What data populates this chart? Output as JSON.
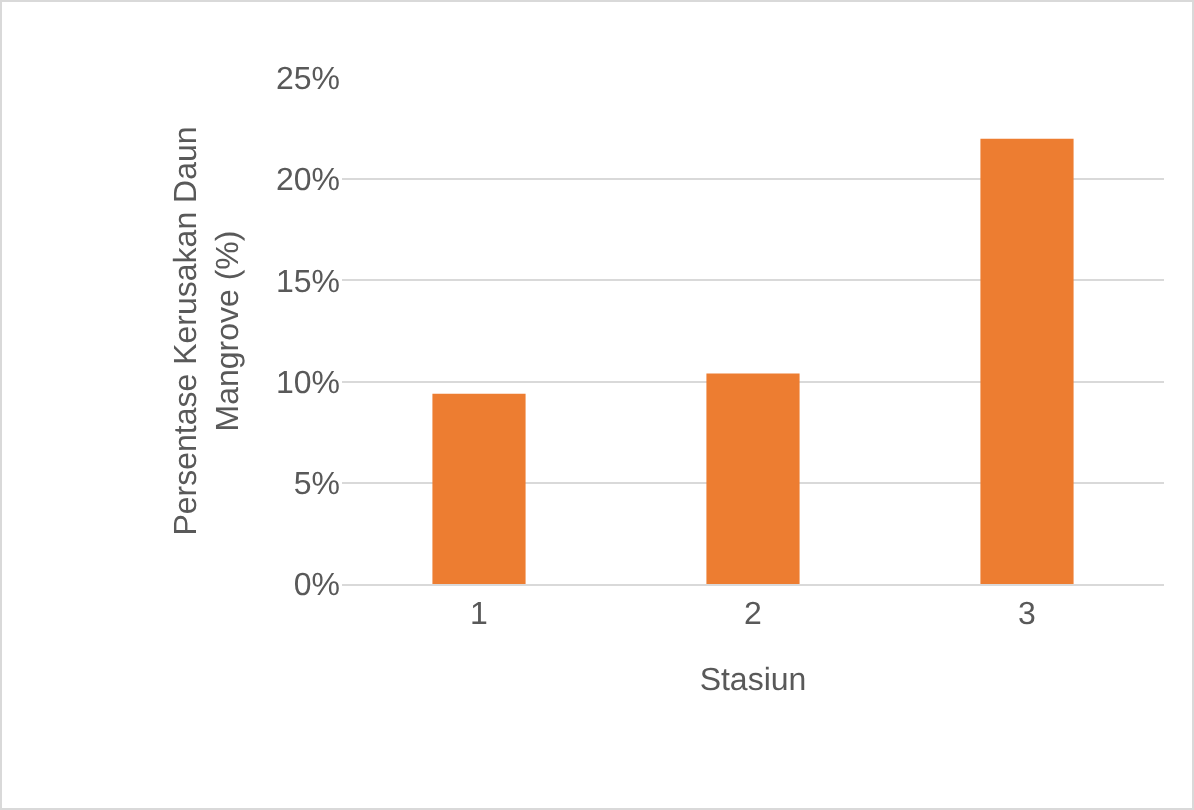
{
  "chart_data": {
    "type": "bar",
    "xlabel": "Stasiun",
    "ylabel": "Persentase Kerusakan Daun Mangrove (%)",
    "categories": [
      "1",
      "2",
      "3"
    ],
    "values": [
      9.4,
      10.4,
      22.0
    ],
    "color": "#ed7d31",
    "ylim": [
      0,
      25
    ],
    "yticks": [
      {
        "value": 0,
        "label": "0%"
      },
      {
        "value": 5,
        "label": "5%"
      },
      {
        "value": 10,
        "label": "10%"
      },
      {
        "value": 15,
        "label": "15%"
      },
      {
        "value": 20,
        "label": "20%"
      },
      {
        "value": 25,
        "label": "25%"
      }
    ],
    "grid": "y",
    "legend": false
  }
}
